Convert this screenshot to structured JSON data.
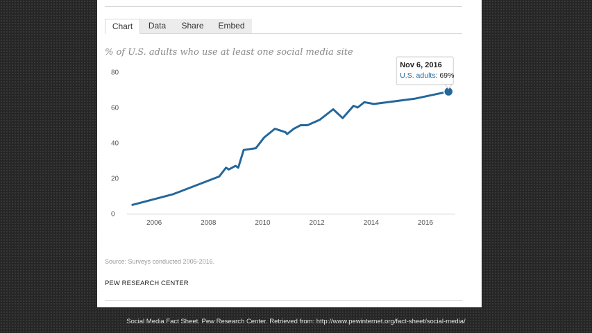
{
  "tabs": [
    {
      "label": "Chart",
      "active": true
    },
    {
      "label": "Data",
      "active": false
    },
    {
      "label": "Share",
      "active": false
    },
    {
      "label": "Embed",
      "active": false
    }
  ],
  "source": "Source: Surveys conducted 2005-2016.",
  "brand": "PEW RESEARCH CENTER",
  "caption": "Social Media Fact Sheet. Pew Research Center. Retrieved from: http://www.pewinternet.org/fact-sheet/social-media/",
  "colors": {
    "line": "#24679a",
    "tooltip_series": "#24679a"
  },
  "tooltip": {
    "date": "Nov 6, 2016",
    "series_label": "U.S. adults",
    "value_label": "69%"
  },
  "chart_data": {
    "type": "line",
    "title": "% of U.S. adults who use at least one social media site",
    "xlabel": "",
    "ylabel": "",
    "xlim": [
      2005,
      2017.1
    ],
    "ylim": [
      0,
      80
    ],
    "xticks": [
      2006,
      2008,
      2010,
      2012,
      2014,
      2016
    ],
    "yticks": [
      0,
      20,
      40,
      60,
      80
    ],
    "grid": false,
    "legend": "none",
    "series": [
      {
        "name": "U.S. adults",
        "x": [
          2005.2,
          2006.7,
          2008.4,
          2008.65,
          2008.75,
          2009.0,
          2009.1,
          2009.3,
          2009.75,
          2010.05,
          2010.45,
          2010.85,
          2010.9,
          2011.15,
          2011.4,
          2011.65,
          2012.1,
          2012.6,
          2012.95,
          2013.35,
          2013.5,
          2013.75,
          2014.1,
          2015.6,
          2016.85
        ],
        "y": [
          5,
          11,
          21,
          26,
          25,
          27,
          26,
          36,
          37,
          43,
          48,
          46,
          45,
          48,
          50,
          50,
          53,
          59,
          54,
          61,
          60,
          63,
          62,
          65,
          69
        ]
      }
    ],
    "highlight": {
      "x": 2016.85,
      "y": 69
    }
  }
}
